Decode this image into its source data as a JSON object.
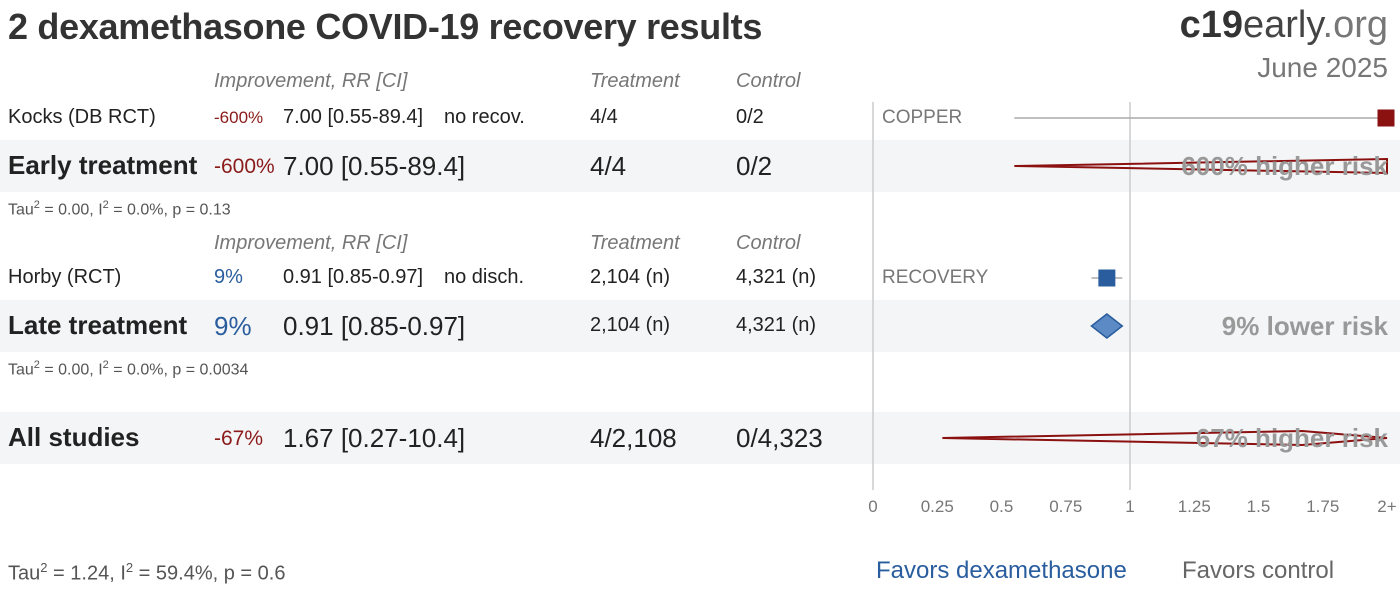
{
  "title": "2 dexamethasone COVID-19 recovery results",
  "brand": {
    "c19": "c19",
    "early": "early",
    "org": ".org"
  },
  "date": "June 2025",
  "headers": {
    "improvement": "Improvement, RR [CI]",
    "treatment": "Treatment",
    "control": "Control"
  },
  "early": {
    "study": {
      "name": "Kocks (DB RCT)",
      "improvement": "-600%",
      "rr": "7.00 [0.55-89.4]",
      "outcome": "no recov.",
      "treatment": "4/4",
      "control": "0/2",
      "trial": "COPPER"
    },
    "summary": {
      "label": "Early treatment",
      "improvement": "-600%",
      "rr": "7.00 [0.55-89.4]",
      "treatment": "4/4",
      "control": "0/2",
      "risk": "600% higher risk"
    },
    "stats": {
      "tau": "Tau",
      "tau_val": " = 0.00, I",
      "i2_val": " = 0.0%, p = 0.13"
    }
  },
  "late": {
    "study": {
      "name": "Horby (RCT)",
      "improvement": "9%",
      "rr": "0.91 [0.85-0.97]",
      "outcome": "no disch.",
      "treatment": "2,104 (n)",
      "control": "4,321 (n)",
      "trial": "RECOVERY"
    },
    "summary": {
      "label": "Late treatment",
      "improvement": "9%",
      "rr": "0.91 [0.85-0.97]",
      "treatment": "2,104 (n)",
      "control": "4,321 (n)",
      "risk": "9% lower risk"
    },
    "stats": {
      "tau": "Tau",
      "tau_val": " = 0.00, I",
      "i2_val": " = 0.0%, p = 0.0034"
    }
  },
  "all": {
    "label": "All studies",
    "improvement": "-67%",
    "rr": "1.67 [0.27-10.4]",
    "treatment": "4/2,108",
    "control": "0/4,323",
    "risk": "67% higher risk"
  },
  "overall_stats": {
    "tau": "Tau",
    "tau_val": " = 1.24, I",
    "i2_val": " = 59.4%, p = 0.6"
  },
  "sup2": "2",
  "favors": {
    "left": "Favors dexamethasone",
    "right": "Favors control"
  },
  "chart_data": {
    "type": "forest",
    "xlim": [
      0,
      2
    ],
    "ticks": [
      "0",
      "0.25",
      "0.5",
      "0.75",
      "1",
      "1.25",
      "1.5",
      "1.75",
      "2+"
    ],
    "tick_values": [
      0,
      0.25,
      0.5,
      0.75,
      1,
      1.25,
      1.5,
      1.75,
      2
    ],
    "reference_line": 1,
    "colors": {
      "harm": "#8b1010",
      "benefit": "#2a5d9e",
      "benefit_fill": "#5b8ac4",
      "axis": "#cccccc",
      "whisker": "#aaaaaa"
    },
    "studies": [
      {
        "name": "Kocks (DB RCT)",
        "rr": 7.0,
        "ci": [
          0.55,
          89.4
        ],
        "group": "early"
      },
      {
        "name": "Horby (RCT)",
        "rr": 0.91,
        "ci": [
          0.85,
          0.97
        ],
        "group": "late"
      }
    ],
    "summaries": [
      {
        "name": "Early treatment",
        "rr": 7.0,
        "ci": [
          0.55,
          89.4
        ]
      },
      {
        "name": "Late treatment",
        "rr": 0.91,
        "ci": [
          0.85,
          0.97
        ]
      },
      {
        "name": "All studies",
        "rr": 1.67,
        "ci": [
          0.27,
          10.4
        ]
      }
    ]
  }
}
